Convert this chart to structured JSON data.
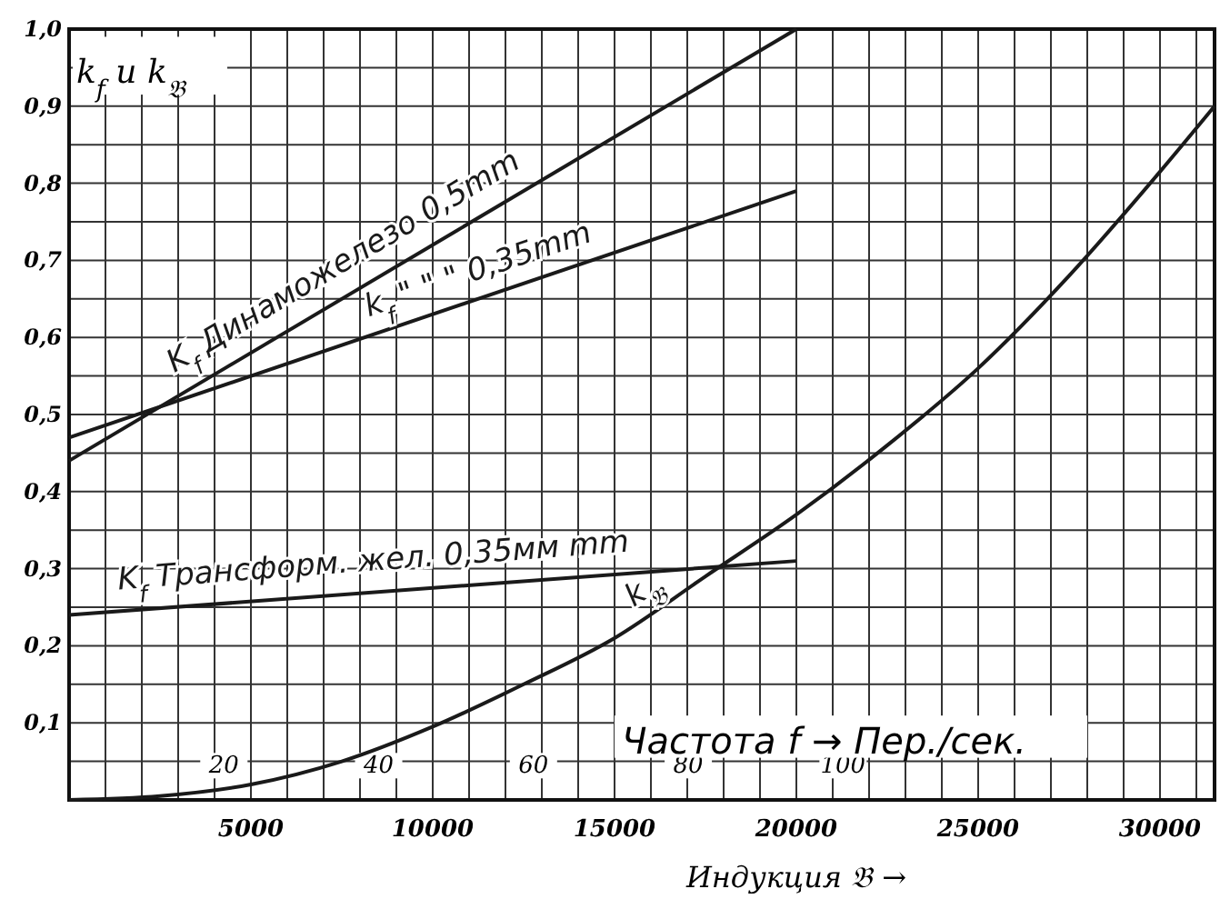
{
  "chart_data": {
    "type": "line",
    "xlabel": "Индукция 𝔅 →",
    "ylabel": "k$_{f}$ u k$_{𝔅}$",
    "x2label": "Частота f → Пер./сек.",
    "xlim": [
      0,
      31500
    ],
    "ylim": [
      0,
      1
    ],
    "xticks": [
      {
        "value": 0,
        "label": null
      },
      {
        "value": 1000,
        "label": null
      },
      {
        "value": 2000,
        "label": null
      },
      {
        "value": 3000,
        "label": null
      },
      {
        "value": 4000,
        "label": null
      },
      5000,
      {
        "value": 6000,
        "label": null
      },
      {
        "value": 7000,
        "label": null
      },
      {
        "value": 8000,
        "label": null
      },
      {
        "value": 9000,
        "label": null
      },
      10000,
      {
        "value": 11000,
        "label": null
      },
      {
        "value": 12000,
        "label": null
      },
      {
        "value": 13000,
        "label": null
      },
      {
        "value": 14000,
        "label": null
      },
      15000,
      {
        "value": 16000,
        "label": null
      },
      {
        "value": 17000,
        "label": null
      },
      {
        "value": 18000,
        "label": null
      },
      {
        "value": 19000,
        "label": null
      },
      20000,
      {
        "value": 21000,
        "label": null
      },
      {
        "value": 22000,
        "label": null
      },
      {
        "value": 23000,
        "label": null
      },
      {
        "value": 24000,
        "label": null
      },
      25000,
      {
        "value": 26000,
        "label": null
      },
      {
        "value": 27000,
        "label": null
      },
      {
        "value": 28000,
        "label": null
      },
      {
        "value": 29000,
        "label": null
      },
      30000,
      {
        "value": 31000,
        "label": null
      }
    ],
    "yticks": [
      {
        "value": 0.05,
        "label": null
      },
      {
        "value": 0.1,
        "label": "0,1"
      },
      {
        "value": 0.15,
        "label": null
      },
      {
        "value": 0.2,
        "label": "0,2"
      },
      {
        "value": 0.25,
        "label": null
      },
      {
        "value": 0.3,
        "label": "0,3"
      },
      {
        "value": 0.35,
        "label": null
      },
      {
        "value": 0.4,
        "label": "0,4"
      },
      {
        "value": 0.45,
        "label": null
      },
      {
        "value": 0.5,
        "label": "0,5"
      },
      {
        "value": 0.55,
        "label": null
      },
      {
        "value": 0.6,
        "label": "0,6"
      },
      {
        "value": 0.65,
        "label": null
      },
      {
        "value": 0.7,
        "label": "0,7"
      },
      {
        "value": 0.75,
        "label": null
      },
      {
        "value": 0.8,
        "label": "0,8"
      },
      {
        "value": 0.85,
        "label": null
      },
      {
        "value": 0.9,
        "label": "0,9"
      },
      {
        "value": 0.95,
        "label": null
      },
      {
        "value": 1,
        "label": "1,0"
      }
    ],
    "x2lim": [
      0,
      148
    ],
    "x2ticks": [
      20,
      40,
      60,
      80,
      100
    ],
    "grid": true,
    "line_style": "solid",
    "marker": "none",
    "series": [
      {
        "name": "K$_{f}$ Динаможелезо 0,5mm",
        "color": "#1a1a1a",
        "x": [
          0,
          20000
        ],
        "values": [
          0.44,
          1.0
        ]
      },
      {
        "name": "k$_{f}$ \" \" \" 0,35mm",
        "color": "#1a1a1a",
        "x": [
          0,
          20000
        ],
        "values": [
          0.47,
          0.79
        ]
      },
      {
        "name": "K$_{f}$ Трансформ. жел. 0,35мм mm",
        "color": "#1a1a1a",
        "x": [
          0,
          20000
        ],
        "values": [
          0.24,
          0.31
        ]
      },
      {
        "name": "k$_{𝔅}$",
        "color": "#1a1a1a",
        "x": [
          0,
          2500,
          5000,
          7500,
          10000,
          12500,
          15000,
          17500,
          20000,
          22500,
          25000,
          27500,
          30000,
          31500
        ],
        "values": [
          0,
          0.005,
          0.02,
          0.05,
          0.095,
          0.15,
          0.21,
          0.29,
          0.37,
          0.46,
          0.56,
          0.68,
          0.815,
          0.9
        ]
      }
    ]
  }
}
